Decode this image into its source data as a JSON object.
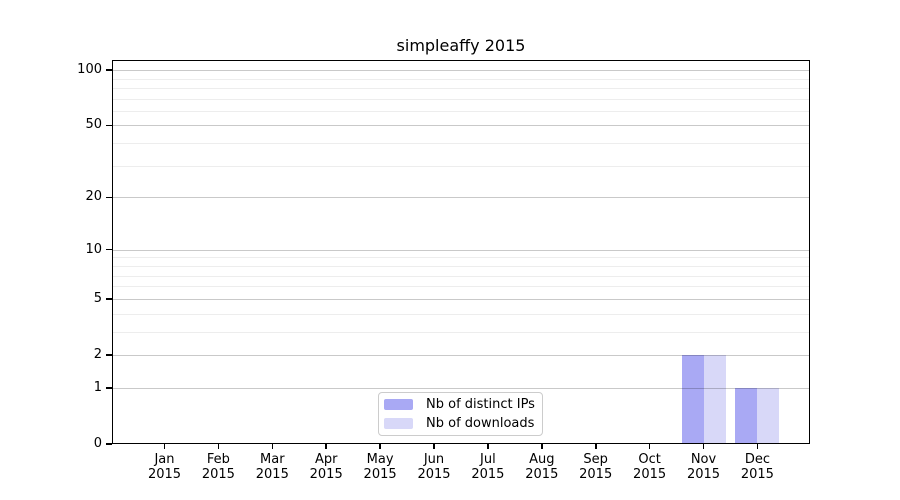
{
  "title": "simpleaffy 2015",
  "chart_data": {
    "type": "bar",
    "title": "simpleaffy 2015",
    "categories": [
      "Jan 2015",
      "Feb 2015",
      "Mar 2015",
      "Apr 2015",
      "May 2015",
      "Jun 2015",
      "Jul 2015",
      "Aug 2015",
      "Sep 2015",
      "Oct 2015",
      "Nov 2015",
      "Dec 2015"
    ],
    "x_tick_lines": [
      [
        "Jan",
        "2015"
      ],
      [
        "Feb",
        "2015"
      ],
      [
        "Mar",
        "2015"
      ],
      [
        "Apr",
        "2015"
      ],
      [
        "May",
        "2015"
      ],
      [
        "Jun",
        "2015"
      ],
      [
        "Jul",
        "2015"
      ],
      [
        "Aug",
        "2015"
      ],
      [
        "Sep",
        "2015"
      ],
      [
        "Oct",
        "2015"
      ],
      [
        "Nov",
        "2015"
      ],
      [
        "Dec",
        "2015"
      ]
    ],
    "series": [
      {
        "name": "Nb of distinct IPs",
        "color": "#a9a9f4",
        "values": [
          0,
          0,
          0,
          0,
          0,
          0,
          0,
          0,
          0,
          0,
          2,
          1
        ]
      },
      {
        "name": "Nb of downloads",
        "color": "#d8d8f8",
        "values": [
          0,
          0,
          0,
          0,
          0,
          0,
          0,
          0,
          0,
          0,
          2,
          1
        ]
      }
    ],
    "xlabel": "",
    "ylabel": "",
    "y_axis": {
      "scale": "log10(1+v)",
      "ylim": [
        0,
        113.3
      ],
      "ticks_major": [
        0,
        1,
        2,
        5,
        10,
        20,
        50,
        100
      ],
      "tick_labels": [
        "0",
        "1",
        "2",
        "5",
        "10",
        "20",
        "50",
        "100"
      ],
      "ticks_minor": [
        3,
        4,
        6,
        7,
        8,
        9,
        30,
        40,
        60,
        70,
        80,
        90
      ]
    },
    "grid": true,
    "legend": {
      "position": "lower center",
      "entries": [
        {
          "label": "Nb of distinct IPs",
          "color": "#a9a9f4"
        },
        {
          "label": "Nb of downloads",
          "color": "#d8d8f8"
        }
      ]
    }
  }
}
